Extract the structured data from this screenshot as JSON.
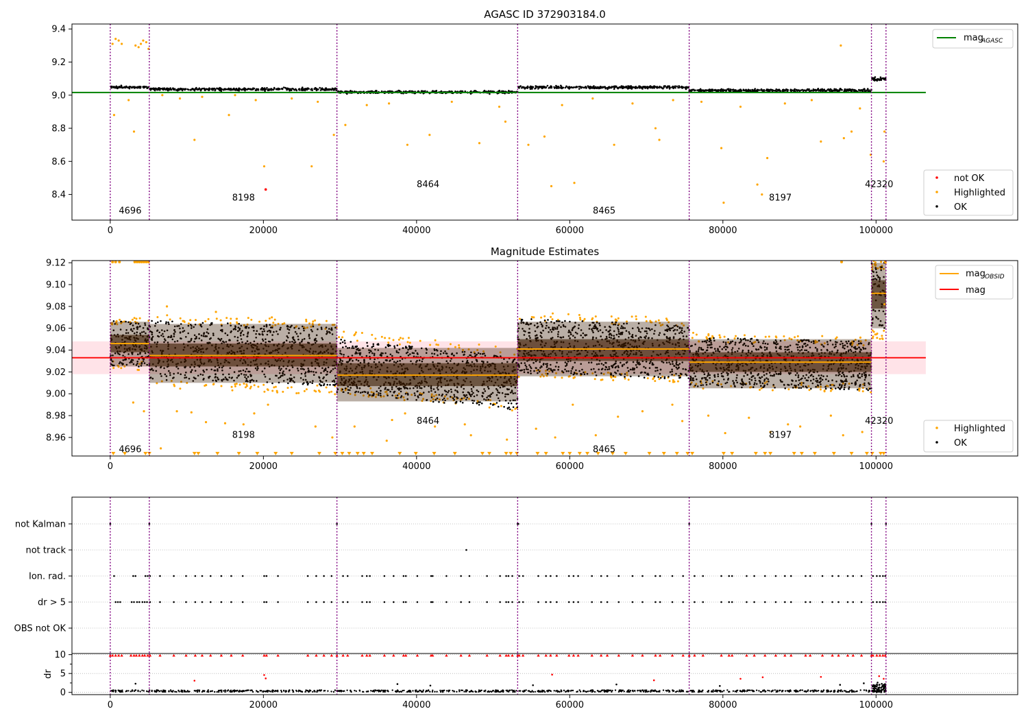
{
  "figure_title": "AGASC ID 372903184.0",
  "colors": {
    "ok": "#000000",
    "highlighted": "#ffa500",
    "not_ok": "#ff0000",
    "agasc_line": "#008000",
    "mag_line": "#ff0000",
    "mag_obsid": "#ffa500",
    "obsid_boundary": "#800080",
    "band": "#ffc0cb",
    "box_fill": "#3a1a00"
  },
  "obsid_boundaries": [
    0,
    5100,
    29600,
    53200,
    75600,
    99400,
    101300
  ],
  "obsid_labels": [
    {
      "text": "4696",
      "x": 2600
    },
    {
      "text": "8198",
      "x": 17400
    },
    {
      "text": "8464",
      "x": 41500
    },
    {
      "text": "8465",
      "x": 64500
    },
    {
      "text": "8197",
      "x": 87500
    },
    {
      "text": "42320",
      "x": 100400
    }
  ],
  "chart_data": [
    {
      "type": "scatter",
      "title": "",
      "xlim": [
        -5000,
        118500
      ],
      "ylim": [
        8.245,
        9.43
      ],
      "xticks": [
        0,
        20000,
        40000,
        60000,
        80000,
        100000
      ],
      "yticks": [
        8.4,
        8.6,
        8.8,
        9.0,
        9.2,
        9.4
      ],
      "ytick_labels": [
        "8.4",
        "8.6",
        "8.8",
        "9.0",
        "9.2",
        "9.4"
      ],
      "grid": false,
      "legend_upper": [
        {
          "name": "mag",
          "sub": "AGASC",
          "marker": "line"
        }
      ],
      "legend_lower": [
        {
          "name": "not OK",
          "marker": "dot"
        },
        {
          "name": "Highlighted",
          "marker": "dot"
        },
        {
          "name": "OK",
          "marker": "dot"
        }
      ],
      "mag_agasc": 9.016,
      "mag_agasc_xrange": [
        -5000,
        106500
      ],
      "label_y": [
        8.3,
        8.38,
        8.46,
        8.3,
        8.38,
        8.46
      ],
      "segments": [
        {
          "x0": 0,
          "x1": 5100,
          "center": 9.048,
          "spread": 0.012
        },
        {
          "x0": 5100,
          "x1": 29600,
          "center": 9.036,
          "spread": 0.012
        },
        {
          "x0": 29600,
          "x1": 53200,
          "center": 9.018,
          "spread": 0.012
        },
        {
          "x0": 53200,
          "x1": 75600,
          "center": 9.047,
          "spread": 0.012
        },
        {
          "x0": 75600,
          "x1": 99400,
          "center": 9.029,
          "spread": 0.012
        },
        {
          "x0": 99400,
          "x1": 101300,
          "center": 9.095,
          "spread": 0.02
        }
      ],
      "highlighted_points": [
        {
          "x": 300,
          "y": 9.31
        },
        {
          "x": 700,
          "y": 9.34
        },
        {
          "x": 1100,
          "y": 9.33
        },
        {
          "x": 1500,
          "y": 9.31
        },
        {
          "x": 3300,
          "y": 9.3
        },
        {
          "x": 3700,
          "y": 9.29
        },
        {
          "x": 4000,
          "y": 9.31
        },
        {
          "x": 4300,
          "y": 9.33
        },
        {
          "x": 4700,
          "y": 9.32
        },
        {
          "x": 5000,
          "y": 9.28
        },
        {
          "x": 3100,
          "y": 8.78
        },
        {
          "x": 500,
          "y": 8.88
        },
        {
          "x": 11000,
          "y": 8.73
        },
        {
          "x": 15500,
          "y": 8.88
        },
        {
          "x": 20100,
          "y": 8.57
        },
        {
          "x": 26300,
          "y": 8.57
        },
        {
          "x": 29200,
          "y": 8.76
        },
        {
          "x": 30700,
          "y": 8.82
        },
        {
          "x": 38800,
          "y": 8.7
        },
        {
          "x": 41700,
          "y": 8.76
        },
        {
          "x": 48200,
          "y": 8.71
        },
        {
          "x": 51600,
          "y": 8.84
        },
        {
          "x": 54600,
          "y": 8.7
        },
        {
          "x": 56700,
          "y": 8.75
        },
        {
          "x": 57600,
          "y": 8.45
        },
        {
          "x": 60600,
          "y": 8.47
        },
        {
          "x": 65800,
          "y": 8.7
        },
        {
          "x": 71200,
          "y": 8.8
        },
        {
          "x": 71700,
          "y": 8.73
        },
        {
          "x": 80100,
          "y": 8.35
        },
        {
          "x": 79800,
          "y": 8.68
        },
        {
          "x": 84500,
          "y": 8.46
        },
        {
          "x": 85100,
          "y": 8.4
        },
        {
          "x": 85800,
          "y": 8.62
        },
        {
          "x": 92800,
          "y": 8.72
        },
        {
          "x": 95400,
          "y": 9.3
        },
        {
          "x": 95800,
          "y": 8.74
        },
        {
          "x": 96800,
          "y": 8.78
        },
        {
          "x": 99300,
          "y": 8.64
        },
        {
          "x": 101100,
          "y": 8.78
        },
        {
          "x": 101000,
          "y": 8.6
        },
        {
          "x": 2400,
          "y": 8.97
        },
        {
          "x": 6800,
          "y": 9.0
        },
        {
          "x": 9100,
          "y": 8.98
        },
        {
          "x": 12000,
          "y": 8.99
        },
        {
          "x": 16300,
          "y": 9.0
        },
        {
          "x": 19000,
          "y": 8.97
        },
        {
          "x": 23700,
          "y": 8.98
        },
        {
          "x": 27100,
          "y": 8.96
        },
        {
          "x": 33500,
          "y": 8.94
        },
        {
          "x": 36400,
          "y": 8.95
        },
        {
          "x": 44600,
          "y": 8.96
        },
        {
          "x": 50800,
          "y": 8.93
        },
        {
          "x": 59000,
          "y": 8.94
        },
        {
          "x": 63000,
          "y": 8.98
        },
        {
          "x": 68200,
          "y": 8.95
        },
        {
          "x": 73500,
          "y": 8.97
        },
        {
          "x": 77200,
          "y": 8.96
        },
        {
          "x": 82300,
          "y": 8.93
        },
        {
          "x": 88100,
          "y": 8.95
        },
        {
          "x": 91600,
          "y": 8.97
        },
        {
          "x": 97900,
          "y": 8.92
        }
      ],
      "not_ok_points": [
        {
          "x": 20300,
          "y": 8.43
        }
      ]
    },
    {
      "type": "scatter",
      "title": "Magnitude Estimates",
      "xlim": [
        -5000,
        118500
      ],
      "ylim": [
        8.943,
        9.122
      ],
      "xticks": [
        0,
        20000,
        40000,
        60000,
        80000,
        100000
      ],
      "yticks": [
        8.96,
        8.98,
        9.0,
        9.02,
        9.04,
        9.06,
        9.08,
        9.1,
        9.12
      ],
      "ytick_labels": [
        "8.96",
        "8.98",
        "9.00",
        "9.02",
        "9.04",
        "9.06",
        "9.08",
        "9.10",
        "9.12"
      ],
      "grid": false,
      "legend_upper": [
        {
          "name": "mag",
          "sub": "OBSID",
          "marker": "line"
        },
        {
          "name": "mag",
          "sub": "",
          "marker": "line"
        }
      ],
      "legend_lower": [
        {
          "name": "Highlighted",
          "marker": "dot"
        },
        {
          "name": "OK",
          "marker": "dot"
        }
      ],
      "mag": 9.033,
      "mag_band": [
        9.018,
        9.048
      ],
      "mag_xrange": [
        -5000,
        106500
      ],
      "label_y": [
        8.949,
        8.962,
        8.975,
        8.949,
        8.962,
        8.975
      ],
      "segments": [
        {
          "x0": 0,
          "x1": 5100,
          "mean": 9.046,
          "q1": 9.038,
          "q3": 9.054,
          "lo": 9.025,
          "hi": 9.066,
          "slope": -0.002,
          "rangeTop": 9.07,
          "rangeBot": 9.022
        },
        {
          "x0": 5100,
          "x1": 29600,
          "mean": 9.035,
          "q1": 9.025,
          "q3": 9.046,
          "lo": 9.01,
          "hi": 9.064,
          "slope": -0.006,
          "rangeTop": 9.07,
          "rangeBot": 9.002
        },
        {
          "x0": 29600,
          "x1": 53200,
          "mean": 9.017,
          "q1": 9.007,
          "q3": 9.028,
          "lo": 8.993,
          "hi": 9.042,
          "slope": -0.016,
          "rangeTop": 9.05,
          "rangeBot": 8.992
        },
        {
          "x0": 53200,
          "x1": 75600,
          "mean": 9.041,
          "q1": 9.03,
          "q3": 9.05,
          "lo": 9.016,
          "hi": 9.066,
          "slope": -0.006,
          "rangeTop": 9.072,
          "rangeBot": 9.012
        },
        {
          "x0": 75600,
          "x1": 99400,
          "mean": 9.029,
          "q1": 9.02,
          "q3": 9.038,
          "lo": 9.005,
          "hi": 9.05,
          "slope": -0.004,
          "rangeTop": 9.054,
          "rangeBot": 9.003
        },
        {
          "x0": 99400,
          "x1": 101300,
          "mean": 9.092,
          "q1": 9.078,
          "q3": 9.104,
          "lo": 9.06,
          "hi": 9.12,
          "slope": 0.0,
          "rangeTop": 9.122,
          "rangeBot": 9.05
        }
      ],
      "clipped_top_x": [
        300,
        700,
        1200,
        3200,
        3500,
        3800,
        4100,
        4400,
        4700,
        5000,
        95500,
        101200
      ],
      "clipped_bottom_x": [
        400,
        1900,
        4600,
        5100,
        11000,
        11500,
        14000,
        16800,
        19200,
        21600,
        23700,
        27300,
        29400,
        30300,
        31200,
        32300,
        33100,
        34200,
        37800,
        39900,
        42300,
        45000,
        48600,
        49500,
        51700,
        52300,
        53100,
        55800,
        56900,
        59100,
        60000,
        61300,
        62300,
        63700,
        65600,
        67300,
        70400,
        72300,
        74000,
        75400,
        76000,
        80100,
        81200,
        84300,
        85500,
        86200,
        89300,
        90300,
        92000,
        94500,
        96800,
        98800,
        99500,
        100600,
        101000
      ],
      "highlighted_points": [
        {
          "x": 3000,
          "y": 8.992
        },
        {
          "x": 4400,
          "y": 8.984
        },
        {
          "x": 6600,
          "y": 8.95
        },
        {
          "x": 8700,
          "y": 8.984
        },
        {
          "x": 10600,
          "y": 8.983
        },
        {
          "x": 12500,
          "y": 8.974
        },
        {
          "x": 15000,
          "y": 8.973
        },
        {
          "x": 17400,
          "y": 8.972
        },
        {
          "x": 18800,
          "y": 8.982
        },
        {
          "x": 20600,
          "y": 8.99
        },
        {
          "x": 26800,
          "y": 8.97
        },
        {
          "x": 29000,
          "y": 8.96
        },
        {
          "x": 31900,
          "y": 8.97
        },
        {
          "x": 36100,
          "y": 8.957
        },
        {
          "x": 36800,
          "y": 8.976
        },
        {
          "x": 38500,
          "y": 8.982
        },
        {
          "x": 42400,
          "y": 8.97
        },
        {
          "x": 46300,
          "y": 8.972
        },
        {
          "x": 47100,
          "y": 8.962
        },
        {
          "x": 51800,
          "y": 8.958
        },
        {
          "x": 55600,
          "y": 8.968
        },
        {
          "x": 58100,
          "y": 8.96
        },
        {
          "x": 60400,
          "y": 8.99
        },
        {
          "x": 63400,
          "y": 8.962
        },
        {
          "x": 66300,
          "y": 8.979
        },
        {
          "x": 69500,
          "y": 8.984
        },
        {
          "x": 73400,
          "y": 8.99
        },
        {
          "x": 74700,
          "y": 8.975
        },
        {
          "x": 78100,
          "y": 8.98
        },
        {
          "x": 80300,
          "y": 8.964
        },
        {
          "x": 83400,
          "y": 8.978
        },
        {
          "x": 86200,
          "y": 8.965
        },
        {
          "x": 88500,
          "y": 8.972
        },
        {
          "x": 90100,
          "y": 8.97
        },
        {
          "x": 94100,
          "y": 8.98
        },
        {
          "x": 95700,
          "y": 8.962
        },
        {
          "x": 98200,
          "y": 8.965
        },
        {
          "x": 7400,
          "y": 9.08
        },
        {
          "x": 13800,
          "y": 9.075
        },
        {
          "x": 21100,
          "y": 9.07
        },
        {
          "x": 55300,
          "y": 9.07
        },
        {
          "x": 66000,
          "y": 9.068
        },
        {
          "x": 101100,
          "y": 9.082
        }
      ]
    },
    {
      "type": "scatter",
      "title": "",
      "xlim": [
        -5000,
        118500
      ],
      "categories": [
        "not Kalman",
        "not track",
        "Ion. rad.",
        "dr > 5",
        "OBS not OK"
      ],
      "grid": "horizontal-dotted",
      "not_kalman_x": [
        0,
        5100,
        29600,
        53200,
        53300,
        75600,
        99400,
        101300
      ],
      "not_track_x": [
        46500
      ],
      "ion_rad_x": [
        500,
        3000,
        3300,
        4600,
        4900,
        5200,
        6500,
        8300,
        9900,
        11100,
        12000,
        13100,
        14500,
        15800,
        17300,
        20100,
        20400,
        21900,
        25800,
        26900,
        27900,
        28900,
        30400,
        31000,
        32900,
        33500,
        33900,
        35800,
        37000,
        38300,
        38600,
        40100,
        41900,
        42100,
        43900,
        45800,
        46900,
        49200,
        50900,
        51700,
        52000,
        52500,
        53400,
        53900,
        55900,
        56900,
        57500,
        58300,
        59900,
        60500,
        61100,
        62900,
        64100,
        64900,
        66400,
        68200,
        69500,
        71200,
        71800,
        73400,
        74800,
        76300,
        77400,
        79800,
        80800,
        81200,
        83100,
        84100,
        85500,
        86900,
        88100,
        88900,
        90800,
        91400,
        93000,
        94300,
        95100,
        96300,
        97000,
        98100,
        99600,
        100100,
        100500,
        100900,
        101200
      ],
      "dr5_x": [
        700,
        1000,
        1300,
        2800,
        3100,
        3500,
        3800,
        4200,
        4500,
        4800,
        5200,
        6500,
        8300,
        9900,
        11100,
        12000,
        13100,
        14500,
        15800,
        17300,
        20100,
        20400,
        21900,
        25800,
        26900,
        27900,
        28900,
        30400,
        31000,
        32900,
        33500,
        33900,
        35800,
        37000,
        38300,
        38600,
        40100,
        41900,
        42100,
        43900,
        45800,
        46900,
        49200,
        50900,
        51700,
        52000,
        52500,
        53400,
        53900,
        55900,
        56900,
        57500,
        58300,
        59900,
        60500,
        61100,
        62900,
        64100,
        64900,
        66400,
        68200,
        69500,
        71200,
        71800,
        73400,
        74800,
        76300,
        77400,
        79800,
        80800,
        81200,
        83100,
        84100,
        85500,
        86900,
        88100,
        88900,
        90800,
        91400,
        93000,
        94300,
        95100,
        96300,
        97000,
        98100,
        99600,
        100100,
        100500,
        100900,
        101200
      ]
    },
    {
      "type": "scatter",
      "title": "",
      "xlim": [
        -5000,
        118500
      ],
      "ylim": [
        -0.6,
        10.3
      ],
      "ylabel": "dr",
      "xticks": [
        0,
        20000,
        40000,
        60000,
        80000,
        100000
      ],
      "yticks": [
        0,
        5,
        10
      ],
      "ytick_labels": [
        "0",
        "5",
        "10"
      ],
      "grid": "horizontal-dotted",
      "outlier_x": [
        0,
        300,
        700,
        1100,
        1500,
        2700,
        3100,
        3400,
        3800,
        4200,
        4500,
        4900,
        5200,
        6500,
        8300,
        9900,
        11100,
        12000,
        13100,
        14500,
        15800,
        17300,
        20100,
        20400,
        21900,
        25800,
        26900,
        27900,
        28900,
        29600,
        30400,
        31000,
        32900,
        33500,
        33900,
        35800,
        37000,
        38300,
        38600,
        40100,
        41900,
        42100,
        43900,
        45800,
        46900,
        49200,
        50900,
        51700,
        52000,
        52500,
        53200,
        53400,
        53900,
        55900,
        56900,
        57500,
        58300,
        59900,
        60500,
        61100,
        62900,
        64100,
        64900,
        66400,
        68200,
        69500,
        71200,
        71800,
        73400,
        74800,
        75600,
        76300,
        77400,
        79800,
        80800,
        81200,
        83100,
        84100,
        85500,
        86900,
        88100,
        88900,
        90800,
        91400,
        93000,
        94300,
        95100,
        96300,
        97000,
        98100,
        99400,
        99600,
        100100,
        100500,
        100900,
        101200
      ],
      "mid_red_points": [
        {
          "x": 11000,
          "y": 3.1
        },
        {
          "x": 20100,
          "y": 4.6
        },
        {
          "x": 20300,
          "y": 3.7
        },
        {
          "x": 57700,
          "y": 4.7
        },
        {
          "x": 71000,
          "y": 3.2
        },
        {
          "x": 82300,
          "y": 3.6
        },
        {
          "x": 85200,
          "y": 4.0
        },
        {
          "x": 92800,
          "y": 4.1
        },
        {
          "x": 100400,
          "y": 4.3
        },
        {
          "x": 101000,
          "y": 3.6
        }
      ],
      "mid_black_points": [
        {
          "x": 3300,
          "y": 2.3
        },
        {
          "x": 37500,
          "y": 2.2
        },
        {
          "x": 41800,
          "y": 1.8
        },
        {
          "x": 55200,
          "y": 1.9
        },
        {
          "x": 66100,
          "y": 2.1
        },
        {
          "x": 79600,
          "y": 1.7
        },
        {
          "x": 95300,
          "y": 2.0
        },
        {
          "x": 98400,
          "y": 2.4
        },
        {
          "x": 100200,
          "y": 2.6
        }
      ]
    }
  ]
}
